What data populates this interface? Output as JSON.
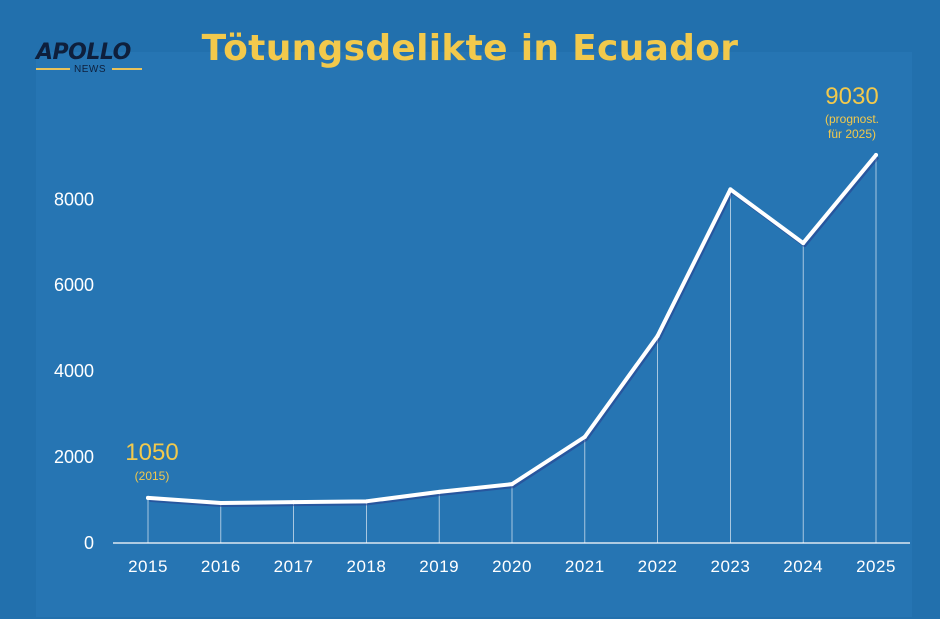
{
  "brand": {
    "logo_text": "APOLLO",
    "logo_sub": "NEWS"
  },
  "colors": {
    "background": "#2270ad",
    "line": "#ffffff",
    "accent": "#f2c94c"
  },
  "chart_data": {
    "type": "line",
    "title": "Tötungsdelikte in Ecuador",
    "xlabel": "",
    "ylabel": "",
    "categories": [
      "2015",
      "2016",
      "2017",
      "2018",
      "2019",
      "2020",
      "2021",
      "2022",
      "2023",
      "2024",
      "2025"
    ],
    "values": [
      1050,
      930,
      950,
      970,
      1190,
      1370,
      2470,
      4820,
      8230,
      6980,
      9030
    ],
    "y_ticks": [
      "0",
      "2000",
      "4000",
      "6000",
      "8000"
    ],
    "ylim": [
      0,
      9030
    ],
    "grid": false,
    "drop_lines": true,
    "annotations": [
      {
        "category": "2015",
        "value_label": "1050",
        "note": "(2015)"
      },
      {
        "category": "2025",
        "value_label": "9030",
        "note_line1": "(prognost.",
        "note_line2": "für 2025)"
      }
    ]
  }
}
